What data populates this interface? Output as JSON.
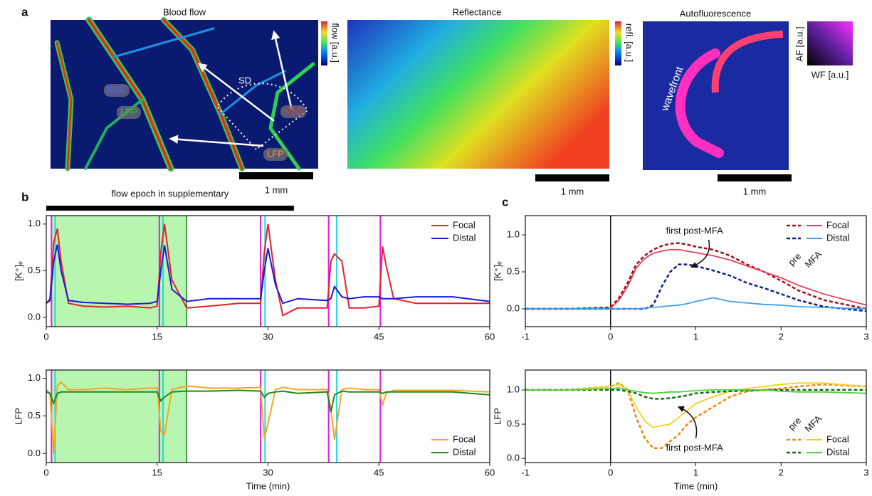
{
  "figure": {
    "panel_labels": [
      "a",
      "b",
      "c"
    ],
    "images": [
      {
        "title": "Blood flow",
        "colorbar": "flow [a.u.]",
        "scale_bar": "1 mm",
        "labels": [
          "SD",
          "KSE",
          "LFP",
          "KSE",
          "LFP"
        ]
      },
      {
        "title": "Reflectance",
        "colorbar": "refl. [a.u.]",
        "scale_bar": "1 mm"
      },
      {
        "title": "Autofluorescence",
        "axis_labels": [
          "AF [a.u.]",
          "WF [a.u.]"
        ],
        "scale_bar": "1 mm",
        "labels": [
          "wavefront"
        ]
      }
    ]
  },
  "chart_data": [
    {
      "type": "line",
      "ylabel": "[K⁺]ₑ",
      "legend": "upper right",
      "epoch": {
        "label": "flow epoch in supplementary",
        "range": [
          0,
          33.5
        ]
      },
      "shaded": {
        "x": [
          0.8,
          19
        ],
        "color": "#b8f5b0"
      },
      "events": [
        {
          "color": "#e020e0",
          "x": [
            0.7,
            15.3,
            29,
            38.2,
            45.2
          ]
        },
        {
          "color": "#20d8e0",
          "x": [
            1.2,
            15.8,
            29.6,
            39.3
          ]
        }
      ],
      "xlim": [
        0,
        60
      ],
      "xticks": [
        0,
        15,
        30,
        45,
        60
      ],
      "ylim": [
        -0.1,
        1.09
      ],
      "yticks": [
        {
          "value": 0,
          "label": "0.0"
        },
        0.5,
        {
          "value": 1,
          "label": "1.0"
        }
      ],
      "x": [
        0,
        0.5,
        1,
        1.5,
        2,
        3,
        5,
        8,
        11,
        14,
        15,
        15.5,
        16,
        17,
        19,
        22,
        26,
        29,
        29.5,
        30,
        31,
        32,
        34,
        38,
        38.5,
        39,
        40,
        41,
        43,
        45,
        45.5,
        46,
        47,
        50,
        55,
        60
      ],
      "series": [
        {
          "name": "Focal",
          "color": "#e8202a",
          "values": [
            0.15,
            0.2,
            0.8,
            0.95,
            0.6,
            0.15,
            0.12,
            0.11,
            0.12,
            0.1,
            0.12,
            0.7,
            1.0,
            0.4,
            0.1,
            0.12,
            0.15,
            0.15,
            0.7,
            1.0,
            0.4,
            0.02,
            0.1,
            0.1,
            0.6,
            0.68,
            0.6,
            0.1,
            0.1,
            0.12,
            0.76,
            0.55,
            0.2,
            0.15,
            0.15,
            0.15
          ]
        },
        {
          "name": "Distal",
          "color": "#1a1adc",
          "values": [
            0.15,
            0.18,
            0.6,
            0.78,
            0.5,
            0.18,
            0.16,
            0.15,
            0.14,
            0.15,
            0.17,
            0.5,
            0.77,
            0.3,
            0.17,
            0.2,
            0.2,
            0.2,
            0.5,
            0.74,
            0.35,
            0.15,
            0.2,
            0.18,
            0.2,
            0.33,
            0.22,
            0.2,
            0.22,
            0.22,
            0.2,
            0.2,
            0.2,
            0.22,
            0.22,
            0.17
          ]
        }
      ]
    },
    {
      "type": "line",
      "ylabel": "LFP",
      "xlabel": "Time (min)",
      "legend": "lower right",
      "shaded": {
        "x": [
          0.8,
          19
        ],
        "color": "#b8f5b0"
      },
      "events": [
        {
          "color": "#e020e0",
          "x": [
            0.7,
            15.3,
            29,
            38.2,
            45.2
          ]
        },
        {
          "color": "#20d8e0",
          "x": [
            1.2,
            15.8,
            29.6,
            39.3
          ]
        }
      ],
      "xlim": [
        0,
        60
      ],
      "xticks": [
        0,
        15,
        30,
        45,
        60
      ],
      "ylim": [
        -0.12,
        1.11
      ],
      "yticks": [
        {
          "value": 0,
          "label": "0.0"
        },
        0.5,
        {
          "value": 1,
          "label": "1.0"
        }
      ],
      "x": [
        0,
        0.5,
        1,
        1.5,
        2,
        3,
        5,
        8,
        11,
        14,
        15,
        15.5,
        16,
        17,
        19,
        22,
        26,
        29,
        29.5,
        30,
        31,
        32,
        34,
        38,
        38.5,
        39,
        40,
        41,
        43,
        45,
        45.5,
        46,
        47,
        50,
        55,
        60
      ],
      "series": [
        {
          "name": "Focal",
          "color": "#f5a623",
          "values": [
            0.85,
            0.8,
            0.0,
            0.9,
            0.95,
            0.85,
            0.85,
            0.87,
            0.85,
            0.87,
            0.87,
            0.3,
            0.25,
            0.85,
            0.9,
            0.87,
            0.87,
            0.88,
            0.2,
            0.4,
            0.85,
            0.88,
            0.85,
            0.85,
            0.6,
            0.18,
            0.85,
            0.87,
            0.85,
            0.85,
            0.65,
            0.8,
            0.84,
            0.84,
            0.84,
            0.82
          ]
        },
        {
          "name": "Distal",
          "color": "#1e8a1e",
          "values": [
            0.82,
            0.8,
            0.67,
            0.8,
            0.82,
            0.82,
            0.82,
            0.82,
            0.82,
            0.82,
            0.82,
            0.7,
            0.75,
            0.82,
            0.83,
            0.83,
            0.84,
            0.83,
            0.75,
            0.8,
            0.82,
            0.83,
            0.8,
            0.82,
            0.55,
            0.78,
            0.83,
            0.82,
            0.82,
            0.82,
            0.8,
            0.82,
            0.82,
            0.82,
            0.82,
            0.78
          ]
        }
      ]
    },
    {
      "type": "line",
      "ylabel": "[K⁺]ₑ",
      "legend": "upper right",
      "conditions": [
        "pre",
        "MFA"
      ],
      "annotation": "first post-MFA",
      "xlim": [
        -1,
        3
      ],
      "xticks": [
        -1,
        0,
        1,
        2,
        3
      ],
      "ylim": [
        -0.24,
        1.26
      ],
      "yticks": [
        {
          "value": 0,
          "label": "0.0"
        },
        0.5,
        {
          "value": 1,
          "label": "1.0"
        }
      ],
      "x": [
        -1,
        -0.5,
        0,
        0.1,
        0.2,
        0.3,
        0.4,
        0.5,
        0.6,
        0.7,
        0.8,
        0.9,
        1,
        1.2,
        1.4,
        1.6,
        1.8,
        2,
        2.2,
        2.5,
        3
      ],
      "series": [
        {
          "name": "Focal",
          "pre_color": "#a0101a",
          "color": "#e8405a",
          "pre_values": [
            0,
            0,
            0.02,
            0.15,
            0.35,
            0.6,
            0.72,
            0.8,
            0.85,
            0.88,
            0.89,
            0.87,
            0.84,
            0.8,
            0.72,
            0.6,
            0.5,
            0.38,
            0.25,
            0.12,
            0.0
          ],
          "values": [
            0,
            0,
            0.01,
            0.12,
            0.3,
            0.55,
            0.68,
            0.75,
            0.78,
            0.8,
            0.8,
            0.78,
            0.76,
            0.72,
            0.66,
            0.58,
            0.5,
            0.42,
            0.32,
            0.2,
            0.05
          ]
        },
        {
          "name": "Distal",
          "pre_color": "#10208a",
          "color": "#40a0f0",
          "pre_values": [
            0,
            0,
            0,
            0,
            0,
            0,
            0,
            0.05,
            0.3,
            0.5,
            0.6,
            0.6,
            0.58,
            0.52,
            0.45,
            0.35,
            0.28,
            0.2,
            0.12,
            0.03,
            -0.03
          ],
          "values": [
            0,
            0,
            0,
            0,
            0,
            0,
            0.01,
            0.02,
            0.03,
            0.04,
            0.05,
            0.07,
            0.1,
            0.15,
            0.1,
            0.08,
            0.06,
            0.05,
            0.03,
            0.02,
            0.0
          ]
        }
      ]
    },
    {
      "type": "line",
      "ylabel": "LFP",
      "xlabel": "Time (min)",
      "legend": "lower right",
      "conditions": [
        "pre",
        "MFA"
      ],
      "annotation": "first post-MFA",
      "xlim": [
        -1,
        3
      ],
      "xticks": [
        -1,
        0,
        1,
        2,
        3
      ],
      "ylim": [
        -0.06,
        1.29
      ],
      "yticks": [
        {
          "value": 0,
          "label": "0.0"
        },
        0.5,
        {
          "value": 1,
          "label": "1.0"
        }
      ],
      "x": [
        -1,
        -0.5,
        0,
        0.1,
        0.2,
        0.3,
        0.4,
        0.5,
        0.6,
        0.7,
        0.8,
        0.9,
        1,
        1.2,
        1.4,
        1.6,
        1.8,
        2,
        2.2,
        2.5,
        3
      ],
      "series": [
        {
          "name": "Focal",
          "pre_color": "#f08a10",
          "color": "#f5d020",
          "pre_values": [
            1,
            1,
            1.05,
            1.1,
            1.0,
            0.6,
            0.3,
            0.15,
            0.15,
            0.25,
            0.35,
            0.5,
            0.6,
            0.75,
            0.9,
            0.98,
            1.0,
            1.02,
            1.05,
            1.08,
            1.05
          ],
          "values": [
            1,
            1,
            1.05,
            1.08,
            1.0,
            0.75,
            0.55,
            0.45,
            0.48,
            0.5,
            0.6,
            0.7,
            0.8,
            0.9,
            0.98,
            1.02,
            1.05,
            1.08,
            1.1,
            1.1,
            1.05
          ]
        },
        {
          "name": "Distal",
          "pre_color": "#1a6a1a",
          "color": "#50d040",
          "pre_values": [
            1,
            1,
            1.0,
            1.0,
            0.98,
            0.95,
            0.9,
            0.87,
            0.87,
            0.88,
            0.9,
            0.92,
            0.95,
            0.97,
            0.98,
            0.99,
            1.0,
            1.0,
            1.0,
            1.0,
            1.0
          ],
          "values": [
            1,
            1,
            1.02,
            1.03,
            1.0,
            0.98,
            0.96,
            0.95,
            0.96,
            0.97,
            0.97,
            0.98,
            0.99,
            1.0,
            1.0,
            1.0,
            1.0,
            0.98,
            0.97,
            0.97,
            0.95
          ]
        }
      ]
    }
  ]
}
